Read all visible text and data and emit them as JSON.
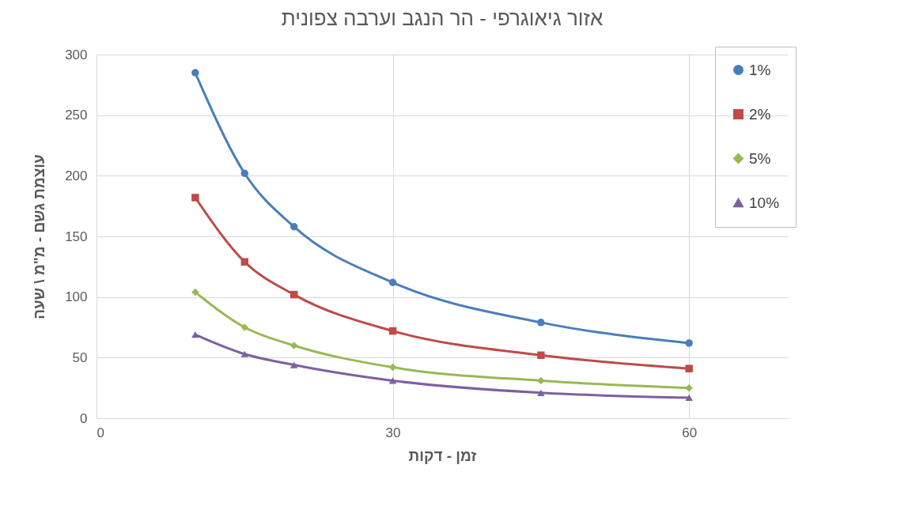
{
  "chart_data": {
    "type": "line",
    "title": "אזור גיאוגרפי - הר הנגב וערבה צפונית",
    "xlabel": "זמן - דקות",
    "ylabel": "עוצמת גשם - מ\"מ \\ שעה",
    "x": [
      10,
      15,
      20,
      30,
      45,
      60
    ],
    "xlim": [
      0,
      70
    ],
    "xticks": [
      0,
      30,
      60
    ],
    "ylim": [
      0,
      300
    ],
    "yticks": [
      0,
      50,
      100,
      150,
      200,
      250,
      300
    ],
    "grid": true,
    "legend": "top right",
    "series": [
      {
        "name": "1%",
        "color": "#4a7ebb",
        "marker": "circle",
        "values": [
          285,
          202,
          158,
          112,
          79,
          62
        ]
      },
      {
        "name": "2%",
        "color": "#be4b48",
        "marker": "square",
        "values": [
          182,
          129,
          102,
          72,
          52,
          41
        ]
      },
      {
        "name": "5%",
        "color": "#98b954",
        "marker": "diamond",
        "values": [
          104,
          75,
          60,
          42,
          31,
          25
        ]
      },
      {
        "name": "10%",
        "color": "#7d60a0",
        "marker": "triangle",
        "values": [
          69,
          53,
          44,
          31,
          21,
          17
        ]
      }
    ]
  }
}
